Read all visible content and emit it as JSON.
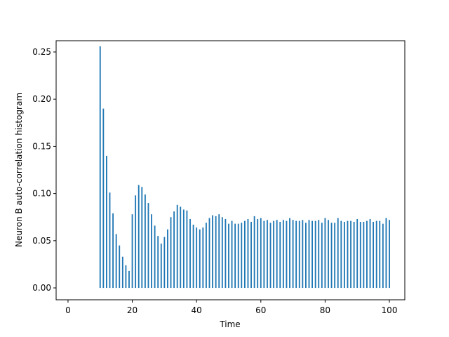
{
  "chart_data": {
    "type": "bar",
    "xlabel": "Time",
    "ylabel": "Neuron B auto-correlation histogram",
    "color": "#1f77b4",
    "x": [
      10,
      11,
      12,
      13,
      14,
      15,
      16,
      17,
      18,
      19,
      20,
      21,
      22,
      23,
      24,
      25,
      26,
      27,
      28,
      29,
      30,
      31,
      32,
      33,
      34,
      35,
      36,
      37,
      38,
      39,
      40,
      41,
      42,
      43,
      44,
      45,
      46,
      47,
      48,
      49,
      50,
      51,
      52,
      53,
      54,
      55,
      56,
      57,
      58,
      59,
      60,
      61,
      62,
      63,
      64,
      65,
      66,
      67,
      68,
      69,
      70,
      71,
      72,
      73,
      74,
      75,
      76,
      77,
      78,
      79,
      80,
      81,
      82,
      83,
      84,
      85,
      86,
      87,
      88,
      89,
      90,
      91,
      92,
      93,
      94,
      95,
      96,
      97,
      98,
      99,
      100
    ],
    "values": [
      0.256,
      0.19,
      0.14,
      0.101,
      0.079,
      0.057,
      0.045,
      0.033,
      0.024,
      0.018,
      0.078,
      0.098,
      0.109,
      0.107,
      0.099,
      0.09,
      0.078,
      0.066,
      0.055,
      0.047,
      0.054,
      0.062,
      0.075,
      0.081,
      0.088,
      0.086,
      0.083,
      0.082,
      0.073,
      0.067,
      0.064,
      0.062,
      0.064,
      0.069,
      0.074,
      0.077,
      0.076,
      0.078,
      0.075,
      0.073,
      0.068,
      0.071,
      0.068,
      0.068,
      0.069,
      0.071,
      0.073,
      0.07,
      0.076,
      0.073,
      0.074,
      0.071,
      0.072,
      0.069,
      0.071,
      0.072,
      0.07,
      0.072,
      0.071,
      0.074,
      0.072,
      0.071,
      0.071,
      0.072,
      0.069,
      0.072,
      0.071,
      0.071,
      0.072,
      0.069,
      0.074,
      0.072,
      0.069,
      0.069,
      0.074,
      0.071,
      0.07,
      0.071,
      0.071,
      0.07,
      0.073,
      0.07,
      0.07,
      0.071,
      0.073,
      0.07,
      0.071,
      0.071,
      0.068,
      0.074,
      0.072
    ],
    "xlim": [
      -3.7,
      104.8
    ],
    "xticks": [
      0,
      20,
      40,
      60,
      80,
      100
    ],
    "ylim": [
      -0.0126,
      0.2619
    ],
    "yticks": [
      {
        "value": 0,
        "label": "0.00"
      },
      {
        "value": 0.05,
        "label": "0.05"
      },
      {
        "value": 0.1,
        "label": "0.10"
      },
      {
        "value": 0.15,
        "label": "0.15"
      },
      {
        "value": 0.2,
        "label": "0.20"
      },
      {
        "value": 0.25,
        "label": "0.25"
      }
    ]
  }
}
